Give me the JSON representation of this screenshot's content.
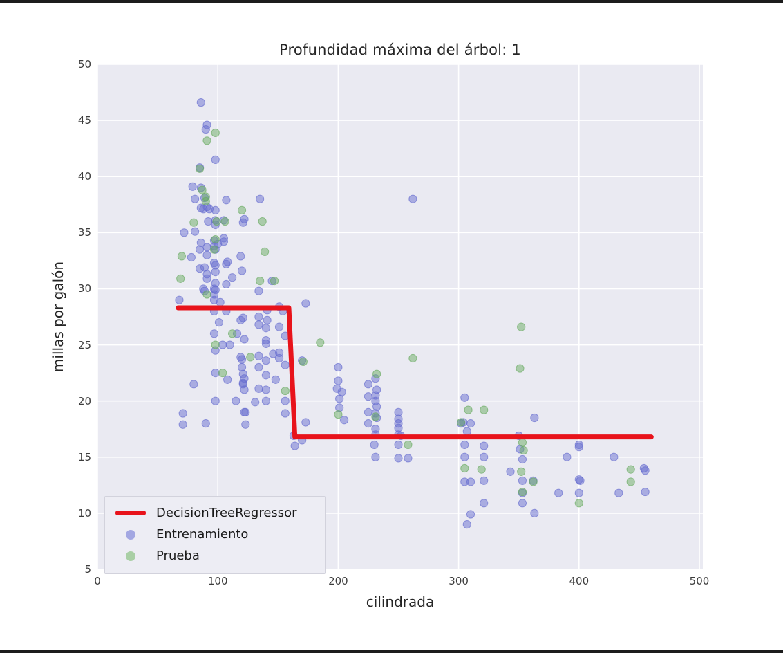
{
  "chart_data": {
    "type": "scatter",
    "title": "Profundidad máxima del árbol: 1",
    "xlabel": "cilindrada",
    "ylabel": "millas por galón",
    "xlim": [
      0,
      500
    ],
    "ylim": [
      5,
      50
    ],
    "xticks": [
      0,
      100,
      200,
      300,
      400,
      500
    ],
    "yticks": [
      5,
      10,
      15,
      20,
      25,
      30,
      35,
      40,
      45,
      50
    ],
    "grid": true,
    "background_color": "#eaeaf2",
    "gridline_color": "#ffffff",
    "legend_position": "lower left",
    "series": [
      {
        "name": "DecisionTreeRegressor",
        "type": "line",
        "color": "#e8131b",
        "line_width": 7,
        "points": [
          [
            67,
            28.3
          ],
          [
            159,
            28.3
          ],
          [
            164,
            16.8
          ],
          [
            460,
            16.8
          ]
        ]
      },
      {
        "name": "Entrenamiento",
        "type": "scatter",
        "color": "#676dcf",
        "opacity": 0.5,
        "points": [
          [
            86,
            46.6
          ],
          [
            91,
            44.6
          ],
          [
            90,
            44.2
          ],
          [
            98,
            41.5
          ],
          [
            85,
            40.8
          ],
          [
            79,
            39.1
          ],
          [
            86,
            39.0
          ],
          [
            89,
            38.1
          ],
          [
            81,
            38.0
          ],
          [
            135,
            38.0
          ],
          [
            91,
            37.3
          ],
          [
            86,
            37.2
          ],
          [
            107,
            37.9
          ],
          [
            98,
            37.0
          ],
          [
            88,
            37.1
          ],
          [
            93,
            37.1
          ],
          [
            105,
            36.1
          ],
          [
            98,
            36.1
          ],
          [
            92,
            36.0
          ],
          [
            122,
            36.2
          ],
          [
            121,
            35.9
          ],
          [
            98,
            35.7
          ],
          [
            81,
            35.1
          ],
          [
            72,
            35.0
          ],
          [
            105,
            34.5
          ],
          [
            97,
            34.3
          ],
          [
            105,
            34.2
          ],
          [
            86,
            34.1
          ],
          [
            100,
            34.0
          ],
          [
            97,
            33.8
          ],
          [
            91,
            33.7
          ],
          [
            85,
            33.5
          ],
          [
            98,
            33.5
          ],
          [
            91,
            33.0
          ],
          [
            119,
            32.9
          ],
          [
            78,
            32.8
          ],
          [
            108,
            32.4
          ],
          [
            107,
            32.2
          ],
          [
            97,
            32.3
          ],
          [
            98,
            32.1
          ],
          [
            89,
            31.9
          ],
          [
            85,
            31.8
          ],
          [
            120,
            31.6
          ],
          [
            98,
            31.5
          ],
          [
            91,
            31.3
          ],
          [
            112,
            31.0
          ],
          [
            91,
            30.9
          ],
          [
            145,
            30.7
          ],
          [
            98,
            30.5
          ],
          [
            107,
            30.4
          ],
          [
            97,
            30.0
          ],
          [
            88,
            30.0
          ],
          [
            98,
            29.9
          ],
          [
            89,
            29.8
          ],
          [
            134,
            29.8
          ],
          [
            97,
            29.5
          ],
          [
            68,
            29.0
          ],
          [
            97,
            29.0
          ],
          [
            102,
            28.8
          ],
          [
            151,
            28.4
          ],
          [
            141,
            28.1
          ],
          [
            107,
            28.0
          ],
          [
            97,
            28.0
          ],
          [
            154,
            28.0
          ],
          [
            134,
            27.5
          ],
          [
            121,
            27.4
          ],
          [
            141,
            27.2
          ],
          [
            119,
            27.2
          ],
          [
            101,
            27.0
          ],
          [
            134,
            26.8
          ],
          [
            151,
            26.6
          ],
          [
            140,
            26.5
          ],
          [
            97,
            26.0
          ],
          [
            116,
            26.0
          ],
          [
            156,
            25.8
          ],
          [
            122,
            25.5
          ],
          [
            140,
            25.4
          ],
          [
            140,
            25.1
          ],
          [
            104,
            25.0
          ],
          [
            110,
            25.0
          ],
          [
            98,
            24.5
          ],
          [
            151,
            24.3
          ],
          [
            146,
            24.2
          ],
          [
            134,
            24.0
          ],
          [
            119,
            23.9
          ],
          [
            151,
            23.8
          ],
          [
            120,
            23.7
          ],
          [
            140,
            23.6
          ],
          [
            156,
            23.2
          ],
          [
            120,
            23.0
          ],
          [
            134,
            23.0
          ],
          [
            98,
            22.5
          ],
          [
            121,
            22.4
          ],
          [
            140,
            22.3
          ],
          [
            122,
            22.0
          ],
          [
            108,
            21.9
          ],
          [
            121,
            21.6
          ],
          [
            80,
            21.5
          ],
          [
            121,
            21.5
          ],
          [
            134,
            21.1
          ],
          [
            122,
            21.0
          ],
          [
            140,
            21.0
          ],
          [
            148,
            21.9
          ],
          [
            98,
            20.0
          ],
          [
            115,
            20.0
          ],
          [
            131,
            19.9
          ],
          [
            140,
            20.0
          ],
          [
            156,
            20.0
          ],
          [
            123,
            19.0
          ],
          [
            122,
            19.0
          ],
          [
            71,
            18.9
          ],
          [
            71,
            17.9
          ],
          [
            123,
            17.9
          ],
          [
            90,
            18.0
          ],
          [
            156,
            18.9
          ],
          [
            173,
            18.1
          ],
          [
            163,
            16.9
          ],
          [
            170,
            16.5
          ],
          [
            164,
            16.0
          ],
          [
            173,
            28.7
          ],
          [
            170,
            23.6
          ],
          [
            200,
            23.0
          ],
          [
            200,
            21.8
          ],
          [
            199,
            21.1
          ],
          [
            203,
            20.8
          ],
          [
            201,
            20.2
          ],
          [
            201,
            19.4
          ],
          [
            205,
            18.3
          ],
          [
            231,
            22.0
          ],
          [
            225,
            21.5
          ],
          [
            232,
            21.0
          ],
          [
            231,
            20.5
          ],
          [
            225,
            20.4
          ],
          [
            231,
            20.0
          ],
          [
            232,
            19.5
          ],
          [
            225,
            19.0
          ],
          [
            231,
            18.9
          ],
          [
            232,
            18.5
          ],
          [
            225,
            18.0
          ],
          [
            231,
            17.5
          ],
          [
            231,
            17.0
          ],
          [
            230,
            16.1
          ],
          [
            231,
            15.0
          ],
          [
            250,
            19.0
          ],
          [
            250,
            18.4
          ],
          [
            250,
            18.0
          ],
          [
            250,
            17.6
          ],
          [
            250,
            17.0
          ],
          [
            252,
            16.9
          ],
          [
            250,
            16.1
          ],
          [
            250,
            14.9
          ],
          [
            258,
            14.9
          ],
          [
            262,
            38.0
          ],
          [
            305,
            20.3
          ],
          [
            304,
            18.1
          ],
          [
            302,
            18.0
          ],
          [
            310,
            18.0
          ],
          [
            307,
            17.3
          ],
          [
            305,
            16.1
          ],
          [
            321,
            16.0
          ],
          [
            305,
            15.0
          ],
          [
            321,
            15.0
          ],
          [
            305,
            12.8
          ],
          [
            310,
            12.8
          ],
          [
            321,
            12.9
          ],
          [
            321,
            10.9
          ],
          [
            310,
            9.9
          ],
          [
            307,
            9.0
          ],
          [
            343,
            13.7
          ],
          [
            363,
            18.5
          ],
          [
            350,
            16.9
          ],
          [
            351,
            15.7
          ],
          [
            353,
            14.8
          ],
          [
            353,
            12.9
          ],
          [
            362,
            12.9
          ],
          [
            353,
            11.8
          ],
          [
            353,
            10.9
          ],
          [
            363,
            10.0
          ],
          [
            383,
            11.8
          ],
          [
            390,
            15.0
          ],
          [
            400,
            16.1
          ],
          [
            400,
            15.9
          ],
          [
            400,
            13.0
          ],
          [
            401,
            12.9
          ],
          [
            400,
            11.8
          ],
          [
            429,
            15.0
          ],
          [
            433,
            11.8
          ],
          [
            454,
            14.0
          ],
          [
            455,
            13.8
          ],
          [
            455,
            11.9
          ]
        ]
      },
      {
        "name": "Prueba",
        "type": "scatter",
        "color": "#69ab61",
        "opacity": 0.5,
        "points": [
          [
            98,
            43.9
          ],
          [
            91,
            43.2
          ],
          [
            85,
            40.7
          ],
          [
            87,
            38.8
          ],
          [
            90,
            38.2
          ],
          [
            90,
            37.8
          ],
          [
            120,
            37.0
          ],
          [
            99,
            36.0
          ],
          [
            106,
            36.0
          ],
          [
            137,
            36.0
          ],
          [
            80,
            35.9
          ],
          [
            98,
            34.4
          ],
          [
            70,
            32.9
          ],
          [
            139,
            33.3
          ],
          [
            135,
            30.7
          ],
          [
            147,
            30.7
          ],
          [
            69,
            30.9
          ],
          [
            97,
            33.5
          ],
          [
            91,
            29.5
          ],
          [
            112,
            26.0
          ],
          [
            98,
            25.0
          ],
          [
            104,
            22.5
          ],
          [
            127,
            23.9
          ],
          [
            156,
            20.9
          ],
          [
            171,
            23.5
          ],
          [
            185,
            25.2
          ],
          [
            200,
            18.8
          ],
          [
            232,
            22.4
          ],
          [
            231,
            18.6
          ],
          [
            262,
            23.8
          ],
          [
            258,
            16.1
          ],
          [
            308,
            19.2
          ],
          [
            321,
            19.2
          ],
          [
            302,
            18.1
          ],
          [
            305,
            14.0
          ],
          [
            319,
            13.9
          ],
          [
            352,
            26.6
          ],
          [
            351,
            22.9
          ],
          [
            353,
            16.3
          ],
          [
            354,
            15.6
          ],
          [
            352,
            13.7
          ],
          [
            362,
            12.8
          ],
          [
            353,
            11.9
          ],
          [
            400,
            10.9
          ],
          [
            443,
            13.9
          ],
          [
            443,
            12.8
          ]
        ]
      }
    ]
  },
  "legend": {
    "entries": [
      {
        "label": "DecisionTreeRegressor",
        "marker": "line",
        "color": "#e8131b"
      },
      {
        "label": "Entrenamiento",
        "marker": "dot",
        "color": "#a3a7e2"
      },
      {
        "label": "Prueba",
        "marker": "dot",
        "color": "#a9cfa5"
      }
    ]
  }
}
